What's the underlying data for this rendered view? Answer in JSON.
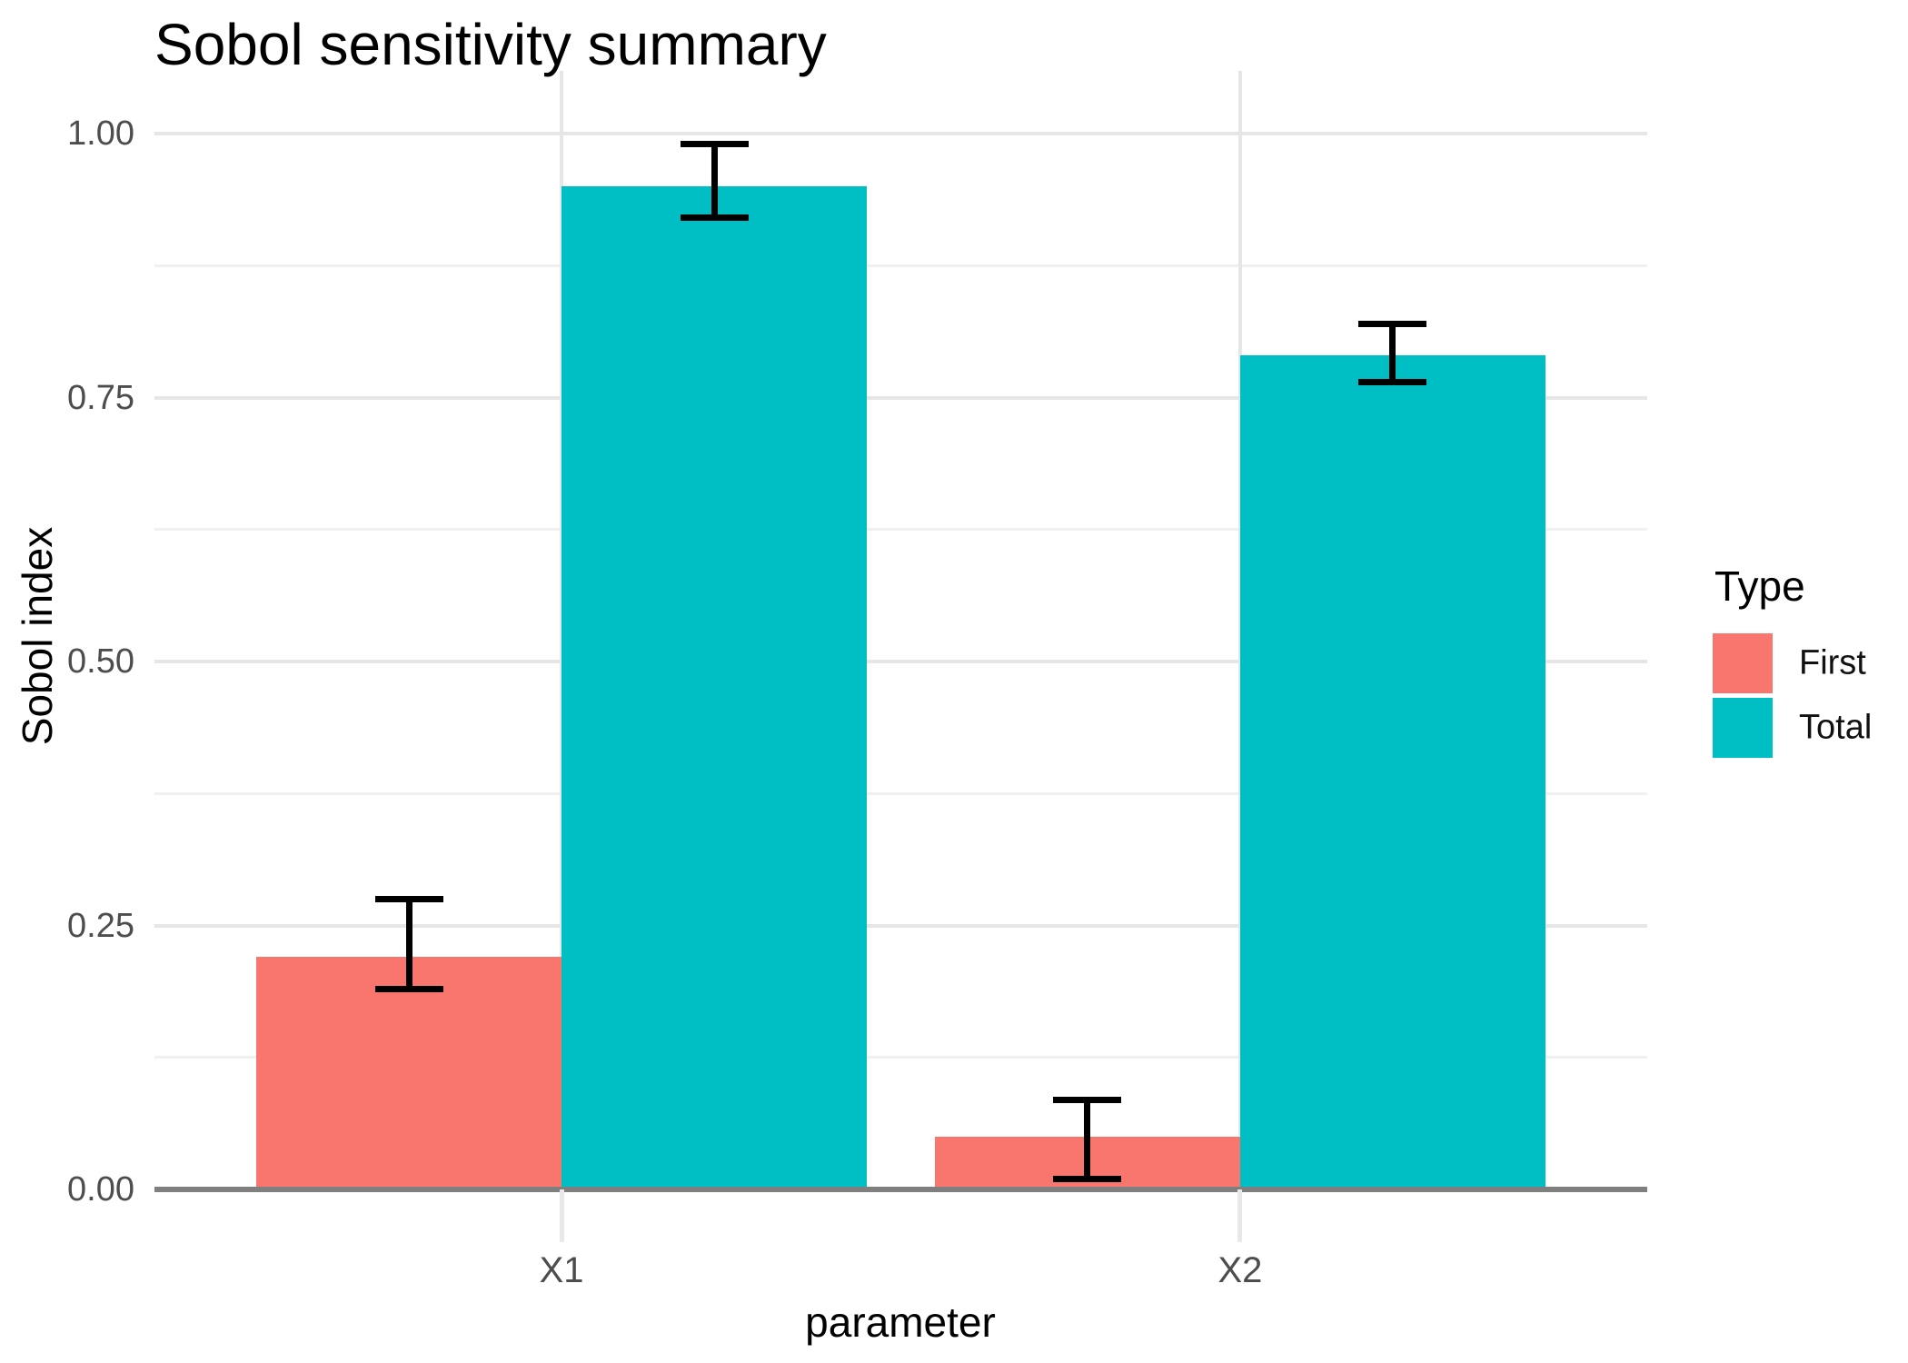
{
  "chart_data": {
    "type": "bar",
    "title": "Sobol sensitivity summary",
    "xlabel": "parameter",
    "ylabel": "Sobol index",
    "categories": [
      "X1",
      "X2"
    ],
    "series": [
      {
        "name": "First",
        "color": "#F8766D",
        "values": [
          0.22,
          0.05
        ],
        "error_low": [
          0.19,
          0.01
        ],
        "error_high": [
          0.275,
          0.085
        ]
      },
      {
        "name": "Total",
        "color": "#00BFC4",
        "values": [
          0.95,
          0.79
        ],
        "error_low": [
          0.92,
          0.765
        ],
        "error_high": [
          0.99,
          0.82
        ]
      }
    ],
    "errorbar_color": "#000000",
    "ylim": [
      0,
      1.06
    ],
    "y_ticks": [
      0,
      0.25,
      0.5,
      0.75,
      1.0
    ],
    "y_tick_labels": [
      "0.00",
      "0.25",
      "0.50",
      "0.75",
      "1.00"
    ],
    "y_minor_ticks": [
      0.125,
      0.375,
      0.625,
      0.875
    ],
    "grid": "major+minor horizontal, major vertical at categories",
    "legend": {
      "title": "Type",
      "position": "right",
      "entries": [
        "First",
        "Total"
      ]
    },
    "style": {
      "grid_major_color": "#E6E6E6",
      "grid_minor_color": "#F0F0F0",
      "axis_line_color": "#7F7F7F",
      "tick_label_color": "#4D4D4D",
      "title_color": "#000000"
    }
  }
}
